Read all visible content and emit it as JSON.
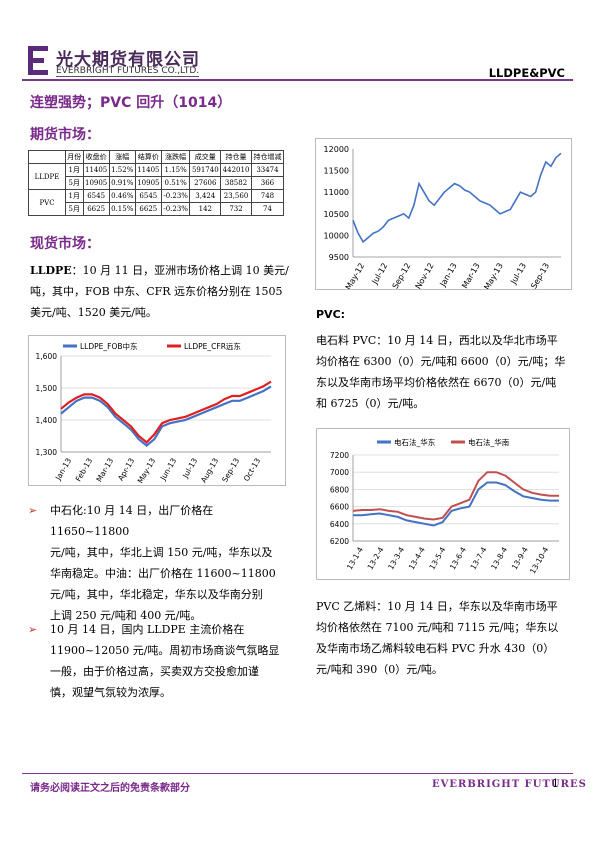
{
  "header": {
    "company_cn": "光大期货有限公司",
    "company_en": "EVERBRIGHT FUTURES CO.,LTD.",
    "report_tag": "LLDPE&PVC"
  },
  "headline": "连塑强势；PVC 回升（1014）",
  "futures": {
    "section_title": "期货市场：",
    "columns": [
      "",
      "",
      "月份",
      "收盘价",
      "涨幅",
      "结算价",
      "涨跌幅",
      "成交量",
      "持仓量",
      "持仓增减"
    ],
    "rows": [
      {
        "product": "LLDPE",
        "month": "1月",
        "cells": [
          "11405",
          "1.52%",
          "11405",
          "1.15%",
          "591740",
          "442010",
          "33474"
        ]
      },
      {
        "product": "",
        "month": "5月",
        "cells": [
          "10905",
          "0.91%",
          "10905",
          "0.51%",
          "27606",
          "38582",
          "366"
        ]
      },
      {
        "product": "PVC",
        "month": "1月",
        "cells": [
          "6545",
          "0.46%",
          "6545",
          "-0.23%",
          "3,424",
          "23,560",
          "748"
        ]
      },
      {
        "product": "",
        "month": "5月",
        "cells": [
          "6625",
          "0.15%",
          "6625",
          "-0.23%",
          "142",
          "732",
          "74"
        ]
      }
    ]
  },
  "spot": {
    "section_title": "现货市场：",
    "lldpe_label": "LLDPE",
    "lldpe_lines": [
      "：10 月 11 日，亚洲市场价格上调 10 美元/",
      "吨，其中，FOB 中东、CFR 远东价格分别在 1505",
      "美元/吨、1520 美元/吨。"
    ],
    "bullets": [
      {
        "lines": [
          "中石化:10 月 14 日，出厂价格在 11650~11800",
          "元/吨，其中，华北上调 150 元/吨，华东以及",
          "华南稳定。中油：出厂价格在 11600~11800",
          "元/吨，其中，华北稳定，华东以及华南分别",
          "上调 250 元/吨和 400 元/吨。"
        ]
      },
      {
        "lines": [
          "10 月 14 日，国内 LLDPE 主流价格在",
          "11900~12050 元/吨。周初市场商谈气氛略显",
          "一般，由于价格过高，买卖双方交投愈加谨",
          "慎，观望气氛较为浓厚。"
        ]
      }
    ],
    "pvc_label": "PVC:",
    "pvc_lines": [
      "电石料 PVC：10 月 14 日，西北以及华北市场平",
      "均价格在 6300（0）元/吨和 6600（0）元/吨；华",
      "东以及华南市场平均价格依然在 6670（0）元/吨",
      "和 6725（0）元/吨。"
    ],
    "ethylene_lines": [
      "PVC 乙烯料：10 月 14 日，华东以及华南市场平",
      "均价格依然在 7100 元/吨和 7115 元/吨；华东以",
      "及华南市场乙烯料较电石料 PVC 升水 430（0）",
      "元/吨和 390（0）元/吨。"
    ]
  },
  "chart_data": [
    {
      "type": "line",
      "title": "",
      "x_ticks": [
        "May-12",
        "Jul-12",
        "Sep-12",
        "Nov-12",
        "Jan-13",
        "Mar-13",
        "May-13",
        "Jul-13",
        "Sep-13"
      ],
      "ylim": [
        9500,
        12000
      ],
      "y_ticks": [
        9500,
        10000,
        10500,
        11000,
        11500,
        12000
      ],
      "series": [
        {
          "name": "",
          "color": "#4472c4",
          "values": [
            10350,
            10050,
            9850,
            9950,
            10050,
            10100,
            10200,
            10350,
            10400,
            10450,
            10500,
            10400,
            10700,
            11200,
            11000,
            10800,
            10700,
            10850,
            11000,
            11100,
            11200,
            11150,
            11050,
            11000,
            10900,
            10800,
            10750,
            10700,
            10600,
            10500,
            10550,
            10600,
            10800,
            11000,
            10950,
            10900,
            11000,
            11400,
            11700,
            11600,
            11800,
            11900
          ]
        }
      ]
    },
    {
      "type": "line",
      "title": "",
      "x_ticks": [
        "Jan-13",
        "Feb-13",
        "Mar-13",
        "Apr-13",
        "May-13",
        "Jun-13",
        "Jul-13",
        "Aug-13",
        "Sep-13",
        "Oct-13"
      ],
      "ylim": [
        1300,
        1600
      ],
      "y_ticks": [
        1300,
        1400,
        1500,
        1600
      ],
      "series": [
        {
          "name": "LLDPE_FOB中东",
          "color": "#4472c4",
          "values": [
            1420,
            1440,
            1460,
            1470,
            1470,
            1460,
            1440,
            1410,
            1390,
            1370,
            1340,
            1320,
            1340,
            1380,
            1390,
            1395,
            1400,
            1410,
            1420,
            1430,
            1440,
            1450,
            1460,
            1460,
            1470,
            1480,
            1490,
            1505
          ]
        },
        {
          "name": "LLDPE_CFR远东",
          "color": "#e02020",
          "values": [
            1435,
            1455,
            1470,
            1480,
            1480,
            1470,
            1450,
            1420,
            1400,
            1380,
            1350,
            1330,
            1355,
            1390,
            1400,
            1405,
            1410,
            1420,
            1430,
            1440,
            1450,
            1465,
            1475,
            1475,
            1485,
            1495,
            1505,
            1520
          ]
        }
      ]
    },
    {
      "type": "line",
      "title": "",
      "x_ticks": [
        "13-1-4",
        "13-2-4",
        "13-3-4",
        "13-4-4",
        "13-5-4",
        "13-6-4",
        "13-7-4",
        "13-8-4",
        "13-9-4",
        "13-10-4"
      ],
      "ylim": [
        6200,
        7200
      ],
      "y_ticks": [
        6200,
        6400,
        6600,
        6800,
        7000,
        7200
      ],
      "series": [
        {
          "name": "电石法_华东",
          "color": "#4472c4",
          "values": [
            6500,
            6500,
            6510,
            6520,
            6500,
            6480,
            6440,
            6420,
            6400,
            6380,
            6420,
            6550,
            6580,
            6600,
            6800,
            6880,
            6880,
            6850,
            6780,
            6720,
            6700,
            6680,
            6670,
            6670
          ]
        },
        {
          "name": "电石法_华南",
          "color": "#c0504d",
          "values": [
            6550,
            6560,
            6560,
            6570,
            6550,
            6540,
            6500,
            6480,
            6460,
            6450,
            6470,
            6600,
            6640,
            6680,
            6900,
            7000,
            7000,
            6960,
            6880,
            6800,
            6760,
            6740,
            6725,
            6725
          ]
        }
      ]
    }
  ],
  "footer": {
    "disclaimer": "请务必阅读正文之后的免责条款部分",
    "brand": "EVERBRIGHT FUTURES",
    "page": "1"
  }
}
